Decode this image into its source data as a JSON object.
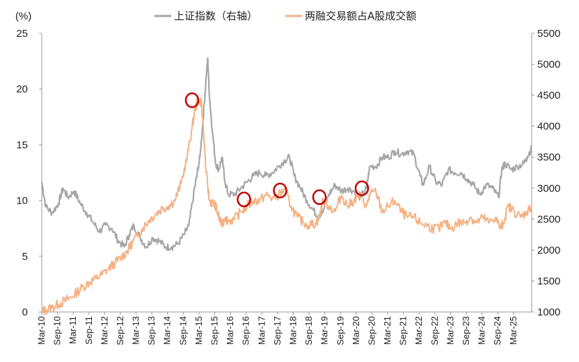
{
  "chart_data": {
    "type": "line",
    "title": "",
    "ylabel_left": "(%)",
    "ylim_left": [
      0,
      25
    ],
    "yticks_left": [
      "0",
      "5",
      "10",
      "15",
      "20",
      "25"
    ],
    "ylim_right": [
      1000,
      5500
    ],
    "yticks_right": [
      "1000",
      "1500",
      "2000",
      "2500",
      "3000",
      "3500",
      "4000",
      "4500",
      "5000",
      "5500"
    ],
    "x_range": [
      2010.17,
      2025.75
    ],
    "xticks": [
      "Mar-10",
      "Sep-10",
      "Mar-11",
      "Sep-11",
      "Mar-12",
      "Sep-12",
      "Mar-13",
      "Sep-13",
      "Mar-14",
      "Sep-14",
      "Mar-15",
      "Sep-15",
      "Mar-16",
      "Sep-16",
      "Mar-17",
      "Sep-17",
      "Mar-18",
      "Sep-18",
      "Mar-19",
      "Sep-19",
      "Mar-20",
      "Sep-20",
      "Mar-21",
      "Sep-21",
      "Mar-22",
      "Sep-22",
      "Mar-23",
      "Sep-23",
      "Mar-24",
      "Sep-24",
      "Mar-25"
    ],
    "series": [
      {
        "name": "上证指数（右轴）",
        "axis": "right",
        "color": "#a6a6a6",
        "x": [
          2010.17,
          2010.3,
          2010.5,
          2010.7,
          2010.85,
          2011.0,
          2011.2,
          2011.4,
          2011.6,
          2011.8,
          2012.0,
          2012.2,
          2012.4,
          2012.6,
          2012.8,
          2012.95,
          2013.1,
          2013.3,
          2013.5,
          2013.7,
          2013.9,
          2014.1,
          2014.3,
          2014.5,
          2014.7,
          2014.85,
          2015.0,
          2015.1,
          2015.2,
          2015.3,
          2015.4,
          2015.45,
          2015.5,
          2015.6,
          2015.7,
          2015.8,
          2015.9,
          2016.0,
          2016.1,
          2016.3,
          2016.5,
          2016.7,
          2016.9,
          2017.1,
          2017.3,
          2017.5,
          2017.7,
          2017.9,
          2018.05,
          2018.2,
          2018.4,
          2018.6,
          2018.8,
          2018.95,
          2019.1,
          2019.3,
          2019.5,
          2019.7,
          2019.9,
          2020.1,
          2020.3,
          2020.5,
          2020.6,
          2020.8,
          2021.0,
          2021.2,
          2021.4,
          2021.6,
          2021.8,
          2022.0,
          2022.2,
          2022.3,
          2022.5,
          2022.7,
          2022.9,
          2023.1,
          2023.3,
          2023.5,
          2023.7,
          2023.9,
          2024.1,
          2024.3,
          2024.5,
          2024.7,
          2024.8,
          2024.9,
          2025.1,
          2025.3,
          2025.5,
          2025.6,
          2025.75
        ],
        "values": [
          3100,
          2700,
          2600,
          2750,
          3000,
          2850,
          2950,
          2750,
          2600,
          2450,
          2300,
          2400,
          2350,
          2150,
          2050,
          2250,
          2400,
          2200,
          2050,
          2200,
          2150,
          2050,
          2050,
          2100,
          2250,
          2400,
          2900,
          3200,
          3500,
          4100,
          4800,
          5100,
          4500,
          3900,
          3400,
          3300,
          3500,
          3100,
          2900,
          2900,
          3000,
          3100,
          3200,
          3250,
          3200,
          3250,
          3350,
          3450,
          3500,
          3200,
          3000,
          2800,
          2650,
          2550,
          2600,
          2900,
          3050,
          2950,
          3000,
          2950,
          2850,
          3000,
          3350,
          3350,
          3500,
          3500,
          3600,
          3550,
          3600,
          3550,
          3200,
          3050,
          3350,
          3100,
          3050,
          3300,
          3250,
          3250,
          3150,
          3050,
          2900,
          3050,
          3000,
          2850,
          3300,
          3400,
          3300,
          3350,
          3400,
          3500,
          3650
        ]
      },
      {
        "name": "两融交易额占A股成交额",
        "axis": "left",
        "color": "#f4b183",
        "x": [
          2010.17,
          2010.3,
          2010.5,
          2010.7,
          2010.9,
          2011.1,
          2011.3,
          2011.5,
          2011.7,
          2011.9,
          2012.1,
          2012.3,
          2012.5,
          2012.7,
          2012.9,
          2013.0,
          2013.2,
          2013.4,
          2013.6,
          2013.8,
          2014.0,
          2014.2,
          2014.4,
          2014.6,
          2014.8,
          2014.95,
          2015.05,
          2015.15,
          2015.25,
          2015.4,
          2015.5,
          2015.6,
          2015.7,
          2015.8,
          2015.9,
          2016.0,
          2016.1,
          2016.3,
          2016.5,
          2016.7,
          2016.9,
          2017.1,
          2017.3,
          2017.5,
          2017.7,
          2017.9,
          2018.1,
          2018.3,
          2018.5,
          2018.7,
          2018.9,
          2019.0,
          2019.1,
          2019.3,
          2019.5,
          2019.7,
          2019.9,
          2020.1,
          2020.3,
          2020.5,
          2020.6,
          2020.8,
          2021.0,
          2021.2,
          2021.4,
          2021.6,
          2021.8,
          2022.0,
          2022.2,
          2022.4,
          2022.6,
          2022.8,
          2023.0,
          2023.2,
          2023.4,
          2023.6,
          2023.8,
          2024.0,
          2024.2,
          2024.4,
          2024.6,
          2024.75,
          2024.85,
          2025.0,
          2025.2,
          2025.4,
          2025.6,
          2025.75
        ],
        "values": [
          0.0,
          0.2,
          0.4,
          0.7,
          1.0,
          1.3,
          1.8,
          2.3,
          2.7,
          3.0,
          3.4,
          3.9,
          4.4,
          4.9,
          5.5,
          6.0,
          6.8,
          7.6,
          8.3,
          8.8,
          9.3,
          9.5,
          10.0,
          11.5,
          14.0,
          16.5,
          18.3,
          19.0,
          18.8,
          12.5,
          10.0,
          9.8,
          9.5,
          8.5,
          7.8,
          8.5,
          8.2,
          8.3,
          9.0,
          9.5,
          10.0,
          10.0,
          10.5,
          10.2,
          10.5,
          11.0,
          9.5,
          8.5,
          8.0,
          7.8,
          8.0,
          8.5,
          10.0,
          9.5,
          9.0,
          10.5,
          9.5,
          10.0,
          10.5,
          9.5,
          10.5,
          10.8,
          9.0,
          9.5,
          10.0,
          9.0,
          8.5,
          8.5,
          8.0,
          7.8,
          7.5,
          7.5,
          8.0,
          7.5,
          8.0,
          8.0,
          8.5,
          8.0,
          8.5,
          8.0,
          8.5,
          7.5,
          8.0,
          9.5,
          9.0,
          8.5,
          9.0,
          9.5
        ]
      }
    ],
    "annotations": [
      {
        "type": "circle",
        "x": 2014.95,
        "y": 19.0,
        "axis": "left"
      },
      {
        "type": "circle",
        "x": 2016.6,
        "y": 10.1,
        "axis": "left"
      },
      {
        "type": "circle",
        "x": 2017.75,
        "y": 10.9,
        "axis": "left"
      },
      {
        "type": "circle",
        "x": 2019.0,
        "y": 10.3,
        "axis": "left"
      },
      {
        "type": "circle",
        "x": 2020.35,
        "y": 11.1,
        "axis": "left"
      }
    ],
    "annotation_color": "#c00000",
    "legend_position": "top-center",
    "grid": false
  }
}
